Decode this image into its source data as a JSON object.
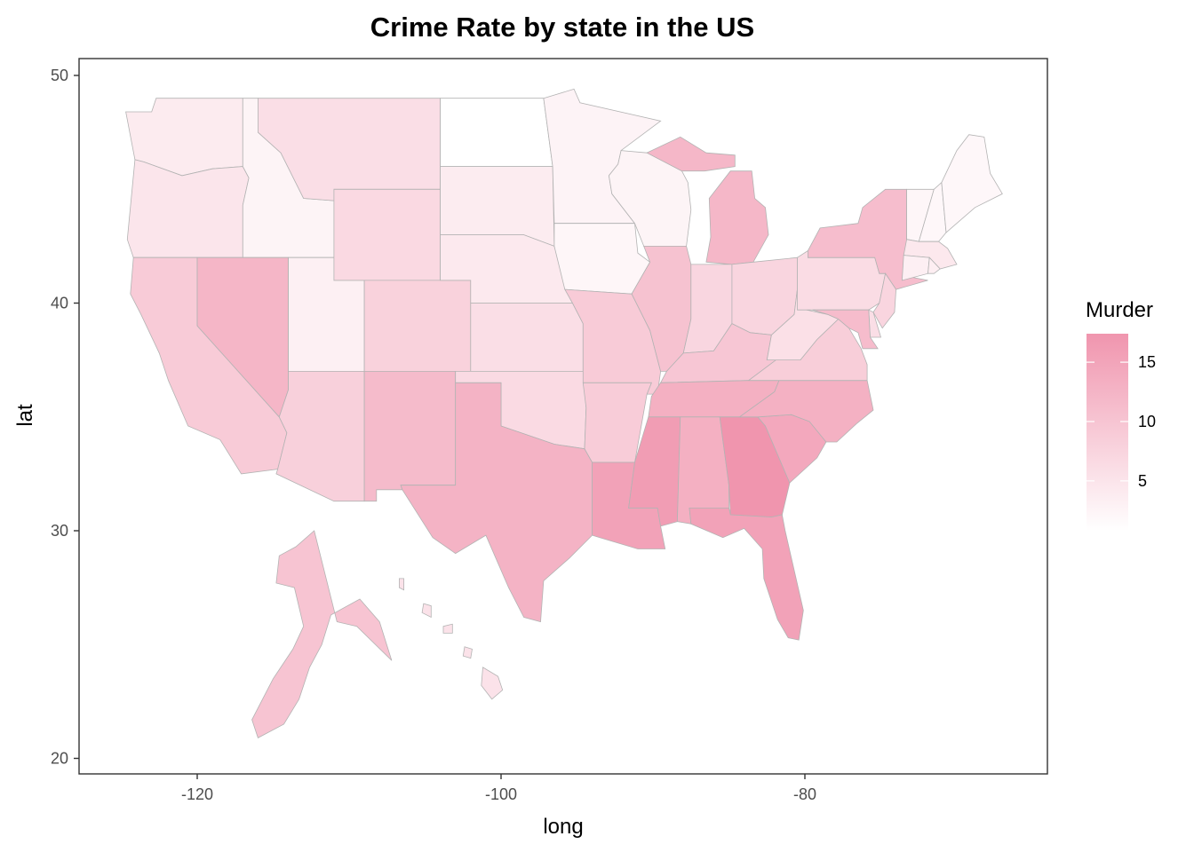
{
  "chart_data": {
    "type": "choropleth",
    "title": "Crime Rate by state in the US",
    "xlabel": "long",
    "ylabel": "lat",
    "xlim": [
      -127.5,
      -63.5
    ],
    "ylim": [
      19.2,
      50.6
    ],
    "x_ticks": [
      -120,
      -100,
      -80
    ],
    "y_ticks": [
      20,
      30,
      40,
      50
    ],
    "legend": {
      "title": "Murder",
      "ticks": [
        5,
        10,
        15
      ],
      "range": [
        0.8,
        17.4
      ],
      "low_color": "#ffffff",
      "high_color": "#f095ae",
      "placement": "right"
    },
    "border_color": "#b3b3b3",
    "states": [
      {
        "name": "Washington",
        "murder": 4.0
      },
      {
        "name": "Oregon",
        "murder": 4.9
      },
      {
        "name": "California",
        "murder": 9.0
      },
      {
        "name": "Idaho",
        "murder": 2.6
      },
      {
        "name": "Nevada",
        "murder": 12.2
      },
      {
        "name": "Utah",
        "murder": 3.2
      },
      {
        "name": "Arizona",
        "murder": 8.1
      },
      {
        "name": "Montana",
        "murder": 6.0
      },
      {
        "name": "Wyoming",
        "murder": 6.8
      },
      {
        "name": "Colorado",
        "murder": 7.9
      },
      {
        "name": "New Mexico",
        "murder": 11.4
      },
      {
        "name": "North Dakota",
        "murder": 0.8
      },
      {
        "name": "South Dakota",
        "murder": 3.8
      },
      {
        "name": "Nebraska",
        "murder": 4.3
      },
      {
        "name": "Kansas",
        "murder": 6.0
      },
      {
        "name": "Oklahoma",
        "murder": 6.6
      },
      {
        "name": "Texas",
        "murder": 12.7
      },
      {
        "name": "Minnesota",
        "murder": 2.7
      },
      {
        "name": "Iowa",
        "murder": 2.2
      },
      {
        "name": "Missouri",
        "murder": 9.0
      },
      {
        "name": "Arkansas",
        "murder": 8.8
      },
      {
        "name": "Louisiana",
        "murder": 15.4
      },
      {
        "name": "Wisconsin",
        "murder": 2.6
      },
      {
        "name": "Illinois",
        "murder": 10.4
      },
      {
        "name": "Michigan",
        "murder": 12.1
      },
      {
        "name": "Indiana",
        "murder": 7.2
      },
      {
        "name": "Ohio",
        "murder": 7.3
      },
      {
        "name": "Kentucky",
        "murder": 9.7
      },
      {
        "name": "Tennessee",
        "murder": 13.2
      },
      {
        "name": "Mississippi",
        "murder": 16.1
      },
      {
        "name": "Alabama",
        "murder": 13.2
      },
      {
        "name": "Georgia",
        "murder": 17.4
      },
      {
        "name": "Florida",
        "murder": 15.4
      },
      {
        "name": "South Carolina",
        "murder": 14.4
      },
      {
        "name": "North Carolina",
        "murder": 13.0
      },
      {
        "name": "Virginia",
        "murder": 8.5
      },
      {
        "name": "West Virginia",
        "murder": 5.7
      },
      {
        "name": "Pennsylvania",
        "murder": 6.3
      },
      {
        "name": "New York",
        "murder": 11.1
      },
      {
        "name": "New Jersey",
        "murder": 7.4
      },
      {
        "name": "Delaware",
        "murder": 5.9
      },
      {
        "name": "Maryland",
        "murder": 11.3
      },
      {
        "name": "Vermont",
        "murder": 2.2
      },
      {
        "name": "New Hampshire",
        "murder": 2.1
      },
      {
        "name": "Maine",
        "murder": 2.1
      },
      {
        "name": "Massachusetts",
        "murder": 4.4
      },
      {
        "name": "Connecticut",
        "murder": 3.3
      },
      {
        "name": "Rhode Island",
        "murder": 3.4
      },
      {
        "name": "Alaska",
        "murder": 10.0
      },
      {
        "name": "Hawaii",
        "murder": 5.3
      }
    ]
  }
}
